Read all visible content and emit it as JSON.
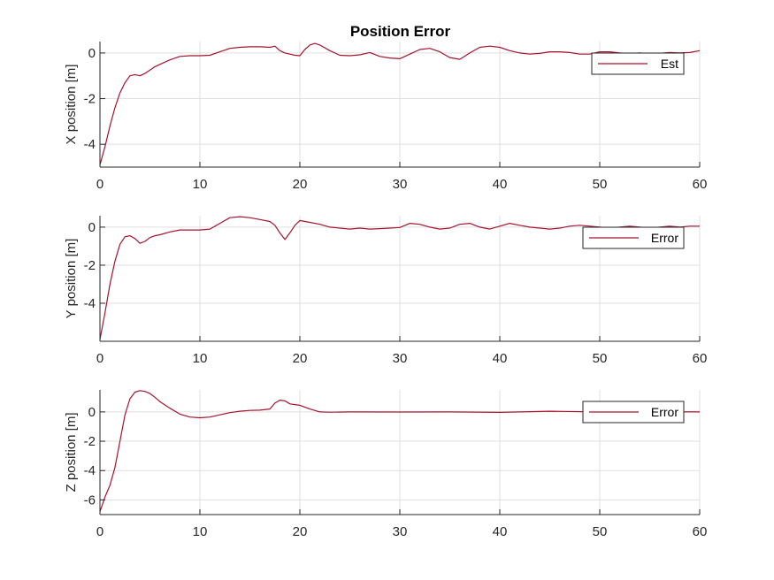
{
  "figure": {
    "title": "Position Error",
    "colors": {
      "line": "#A2142F",
      "grid": "#dfdfdf",
      "axis": "#262626",
      "background": "#ffffff"
    }
  },
  "chart_data": [
    {
      "type": "line",
      "title": "Position Error",
      "ylabel": "X position [m]",
      "xlim": [
        0,
        60
      ],
      "ylim": [
        -5,
        0.5
      ],
      "xticks": [
        0,
        10,
        20,
        30,
        40,
        50,
        60
      ],
      "yticks": [
        -4,
        -2,
        0
      ],
      "grid": true,
      "legend": {
        "placement": "top-right",
        "entries": [
          "Est"
        ]
      },
      "series": [
        {
          "name": "Est",
          "color": "#A2142F",
          "x": [
            0,
            0.5,
            1,
            1.5,
            2,
            2.5,
            3,
            3.5,
            4,
            4.5,
            5,
            5.5,
            6,
            7,
            8,
            9,
            10,
            11,
            12,
            13,
            14,
            15,
            16,
            17,
            17.5,
            18,
            18.5,
            19,
            19.5,
            20,
            20.5,
            21,
            21.5,
            22,
            23,
            24,
            25,
            26,
            27,
            28,
            29,
            30,
            31,
            32,
            33,
            34,
            35,
            36,
            37,
            38,
            39,
            40,
            41,
            42,
            43,
            44,
            45,
            46,
            47,
            48,
            49,
            50,
            51,
            52,
            53,
            54,
            55,
            56,
            57,
            58,
            59,
            60
          ],
          "y": [
            -4.9,
            -4.1,
            -3.2,
            -2.4,
            -1.75,
            -1.3,
            -1.0,
            -0.95,
            -1.0,
            -0.9,
            -0.75,
            -0.6,
            -0.5,
            -0.3,
            -0.15,
            -0.12,
            -0.12,
            -0.1,
            0.05,
            0.2,
            0.25,
            0.27,
            0.27,
            0.25,
            0.3,
            0.1,
            0.0,
            -0.05,
            -0.1,
            -0.12,
            0.15,
            0.35,
            0.42,
            0.35,
            0.1,
            -0.1,
            -0.12,
            -0.08,
            0.02,
            -0.15,
            -0.22,
            -0.25,
            -0.05,
            0.15,
            0.2,
            0.05,
            -0.2,
            -0.28,
            0.0,
            0.25,
            0.3,
            0.25,
            0.1,
            0.0,
            -0.05,
            -0.02,
            0.05,
            0.05,
            0.02,
            -0.05,
            -0.05,
            0.05,
            0.05,
            0.0,
            -0.03,
            0.0,
            -0.04,
            -0.02,
            0.02,
            0.0,
            0.02,
            0.1
          ]
        }
      ]
    },
    {
      "type": "line",
      "ylabel": "Y position [m]",
      "xlim": [
        0,
        60
      ],
      "ylim": [
        -6,
        0.6
      ],
      "xticks": [
        0,
        10,
        20,
        30,
        40,
        50,
        60
      ],
      "yticks": [
        -4,
        -2,
        0
      ],
      "grid": true,
      "legend": {
        "placement": "top-right",
        "entries": [
          "Error"
        ]
      },
      "series": [
        {
          "name": "Error",
          "color": "#A2142F",
          "x": [
            0,
            0.5,
            1,
            1.5,
            2,
            2.5,
            3,
            3.5,
            4,
            4.5,
            5,
            5.5,
            6,
            7,
            8,
            9,
            10,
            11,
            12,
            13,
            14,
            15,
            16,
            17,
            17.5,
            18,
            18.5,
            19,
            19.5,
            20,
            20.5,
            21,
            22,
            23,
            24,
            25,
            26,
            27,
            28,
            29,
            30,
            31,
            32,
            33,
            34,
            35,
            36,
            37,
            38,
            39,
            40,
            41,
            42,
            43,
            44,
            45,
            46,
            47,
            48,
            49,
            50,
            51,
            52,
            53,
            54,
            55,
            56,
            57,
            58,
            59,
            60
          ],
          "y": [
            -5.9,
            -4.5,
            -3.0,
            -1.8,
            -0.9,
            -0.5,
            -0.45,
            -0.6,
            -0.85,
            -0.75,
            -0.55,
            -0.45,
            -0.4,
            -0.25,
            -0.15,
            -0.15,
            -0.15,
            -0.1,
            0.2,
            0.5,
            0.55,
            0.5,
            0.4,
            0.3,
            0.1,
            -0.3,
            -0.65,
            -0.3,
            0.1,
            0.35,
            0.3,
            0.25,
            0.15,
            0.0,
            -0.05,
            -0.1,
            -0.05,
            -0.1,
            -0.08,
            -0.05,
            -0.02,
            0.2,
            0.15,
            0.0,
            -0.1,
            -0.05,
            0.15,
            0.2,
            0.0,
            -0.1,
            0.05,
            0.2,
            0.1,
            0.0,
            -0.05,
            -0.1,
            -0.05,
            0.05,
            0.1,
            0.05,
            0.0,
            -0.05,
            0.0,
            0.05,
            0.0,
            -0.05,
            0.0,
            0.05,
            0.0,
            0.05,
            0.05
          ]
        }
      ]
    },
    {
      "type": "line",
      "ylabel": "Z position [m]",
      "xlim": [
        0,
        60
      ],
      "ylim": [
        -7,
        1.5
      ],
      "xticks": [
        0,
        10,
        20,
        30,
        40,
        50,
        60
      ],
      "yticks": [
        -6,
        -4,
        -2,
        0
      ],
      "grid": true,
      "legend": {
        "placement": "top-right",
        "entries": [
          "Error"
        ]
      },
      "series": [
        {
          "name": "Error",
          "color": "#A2142F",
          "x": [
            0,
            0.5,
            1,
            1.5,
            2,
            2.5,
            3,
            3.5,
            4,
            4.5,
            5,
            5.5,
            6,
            7,
            8,
            9,
            10,
            11,
            12,
            13,
            14,
            15,
            16,
            17,
            17.5,
            18,
            18.5,
            19,
            19.5,
            20,
            21,
            22,
            23,
            25,
            30,
            35,
            40,
            45,
            50,
            55,
            60
          ],
          "y": [
            -6.8,
            -5.8,
            -5.0,
            -3.8,
            -2.0,
            -0.2,
            0.9,
            1.35,
            1.45,
            1.4,
            1.25,
            1.0,
            0.7,
            0.25,
            -0.15,
            -0.35,
            -0.4,
            -0.35,
            -0.2,
            -0.05,
            0.05,
            0.1,
            0.12,
            0.2,
            0.6,
            0.8,
            0.75,
            0.55,
            0.5,
            0.45,
            0.2,
            0.0,
            -0.02,
            0.0,
            -0.01,
            0.0,
            -0.03,
            0.05,
            0.0,
            0.02,
            0.0
          ]
        }
      ]
    }
  ]
}
